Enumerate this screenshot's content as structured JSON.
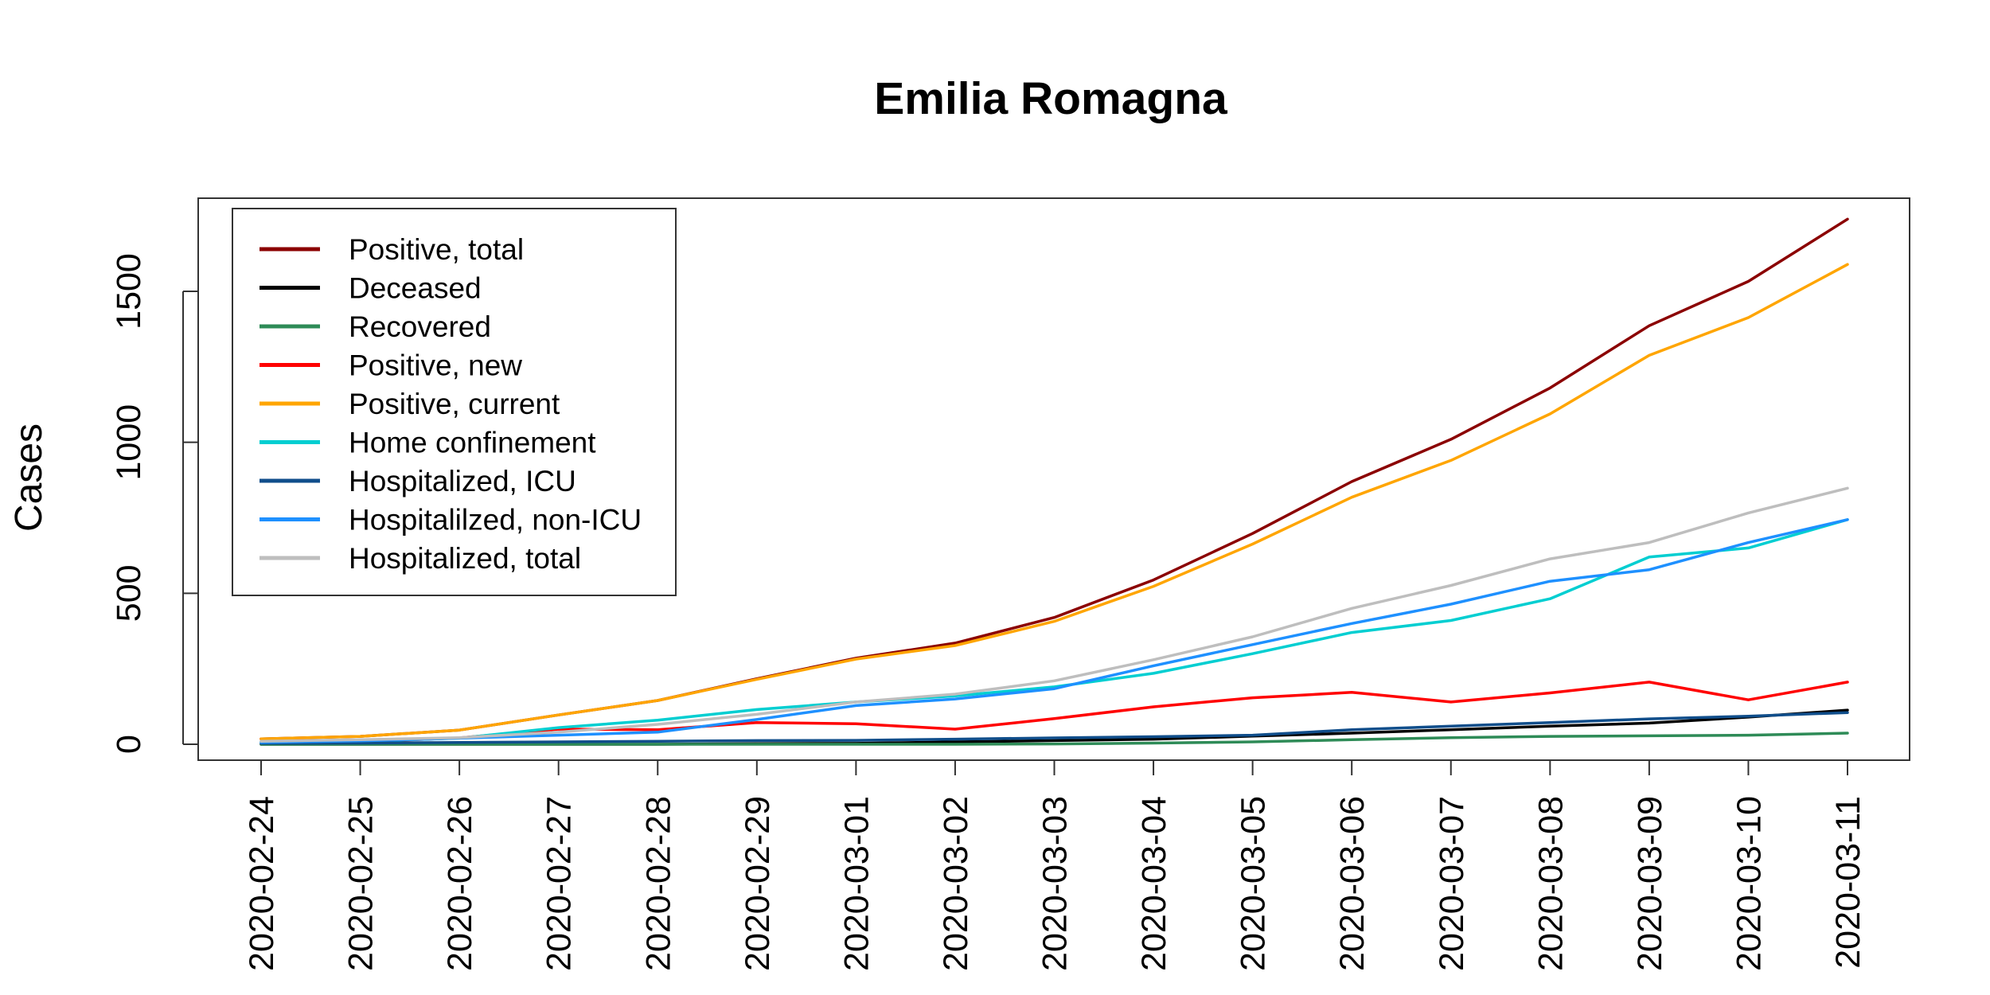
{
  "chart_data": {
    "type": "line",
    "title": "Emilia Romagna",
    "xlabel": "",
    "ylabel": "Cases",
    "x": [
      "2020-02-24",
      "2020-02-25",
      "2020-02-26",
      "2020-02-27",
      "2020-02-28",
      "2020-02-29",
      "2020-03-01",
      "2020-03-02",
      "2020-03-03",
      "2020-03-04",
      "2020-03-05",
      "2020-03-06",
      "2020-03-07",
      "2020-03-08",
      "2020-03-09",
      "2020-03-10",
      "2020-03-11"
    ],
    "yticks": [
      0,
      500,
      1000,
      1500
    ],
    "ylim": [
      -50,
      1800
    ],
    "grid": false,
    "legend_position": "top-left",
    "series": [
      {
        "name": "Positive, total",
        "color": "#8B0000",
        "values": [
          18,
          26,
          47,
          97,
          145,
          217,
          285,
          335,
          420,
          544,
          698,
          870,
          1010,
          1180,
          1386,
          1533,
          1739
        ]
      },
      {
        "name": "Deceased",
        "color": "#000000",
        "values": [
          0,
          0,
          0,
          0,
          0,
          2,
          3,
          8,
          12,
          17,
          27,
          37,
          48,
          60,
          70,
          90,
          113
        ]
      },
      {
        "name": "Recovered",
        "color": "#2E8B57",
        "values": [
          0,
          0,
          0,
          0,
          0,
          0,
          0,
          0,
          1,
          4,
          8,
          15,
          22,
          26,
          28,
          30,
          37
        ]
      },
      {
        "name": "Positive, new",
        "color": "#FF0000",
        "values": [
          18,
          8,
          21,
          50,
          48,
          72,
          68,
          50,
          85,
          124,
          154,
          172,
          140,
          170,
          206,
          147,
          206
        ]
      },
      {
        "name": "Positive, current",
        "color": "#FFA500",
        "values": [
          18,
          26,
          47,
          97,
          145,
          215,
          282,
          327,
          407,
          523,
          663,
          818,
          940,
          1094,
          1288,
          1413,
          1589
        ]
      },
      {
        "name": "Home confinement",
        "color": "#00CED1",
        "values": [
          8,
          10,
          20,
          55,
          80,
          115,
          140,
          160,
          190,
          235,
          300,
          370,
          410,
          482,
          620,
          650,
          744
        ]
      },
      {
        "name": "Hospitalized, ICU",
        "color": "#104E8B",
        "values": [
          3,
          4,
          6,
          8,
          10,
          12,
          13,
          17,
          21,
          25,
          30,
          48,
          60,
          72,
          84,
          93,
          105
        ]
      },
      {
        "name": "Hospitalilzed, non-ICU",
        "color": "#1E90FF",
        "values": [
          6,
          11,
          20,
          30,
          40,
          82,
          128,
          150,
          184,
          260,
          330,
          400,
          464,
          540,
          578,
          668,
          744
        ]
      },
      {
        "name": "Hospitalized, total",
        "color": "#BEBEBE",
        "values": [
          10,
          15,
          22,
          40,
          66,
          99,
          140,
          166,
          210,
          280,
          356,
          450,
          526,
          614,
          668,
          766,
          848
        ]
      }
    ]
  }
}
